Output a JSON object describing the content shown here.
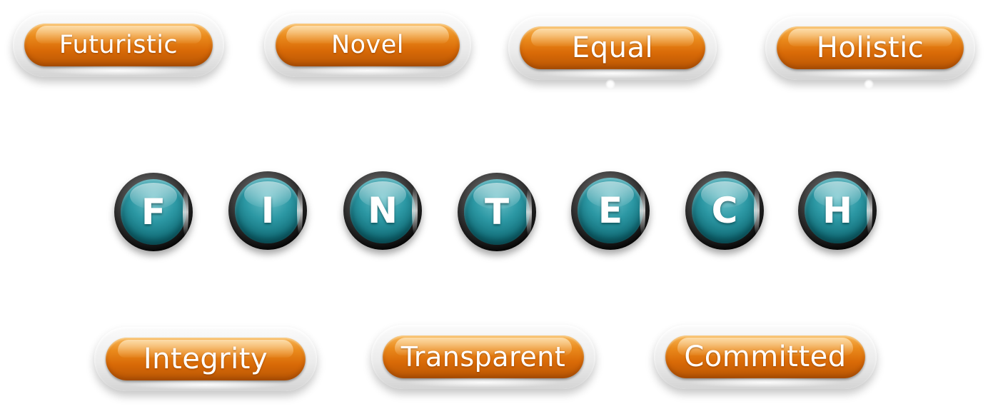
{
  "top_badges": [
    {
      "label": "Futuristic"
    },
    {
      "label": "Novel"
    },
    {
      "label": "Equal"
    },
    {
      "label": "Holistic"
    }
  ],
  "letters": [
    {
      "letter": "F"
    },
    {
      "letter": "I"
    },
    {
      "letter": "N"
    },
    {
      "letter": "T"
    },
    {
      "letter": "E"
    },
    {
      "letter": "C"
    },
    {
      "letter": "H"
    }
  ],
  "bottom_badges": [
    {
      "label": "Integrity"
    },
    {
      "label": "Transparent"
    },
    {
      "label": "Committed"
    }
  ],
  "colors": {
    "pill_orange": "#e07512",
    "circle_teal": "#1e8793",
    "frame_silver": "#ececec",
    "text": "#ffffff"
  }
}
